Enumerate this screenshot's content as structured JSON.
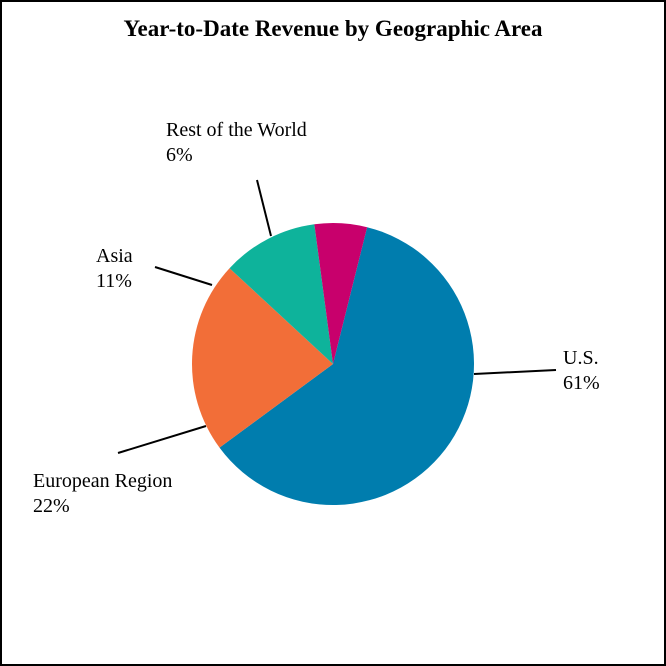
{
  "chart_data": {
    "type": "pie",
    "title": "Year-to-Date Revenue by Geographic Area",
    "slices": [
      {
        "label": "U.S.",
        "value": 61,
        "value_label": "61%",
        "color": "#007DAE"
      },
      {
        "label": "European Region",
        "value": 22,
        "value_label": "22%",
        "color": "#F26E38"
      },
      {
        "label": "Asia",
        "value": 11,
        "value_label": "11%",
        "color": "#0EB39B"
      },
      {
        "label": "Rest of the World",
        "value": 6,
        "value_label": "6%",
        "color": "#C8006C"
      }
    ],
    "start_angle_deg": 14,
    "direction": "clockwise",
    "legend": "none"
  }
}
